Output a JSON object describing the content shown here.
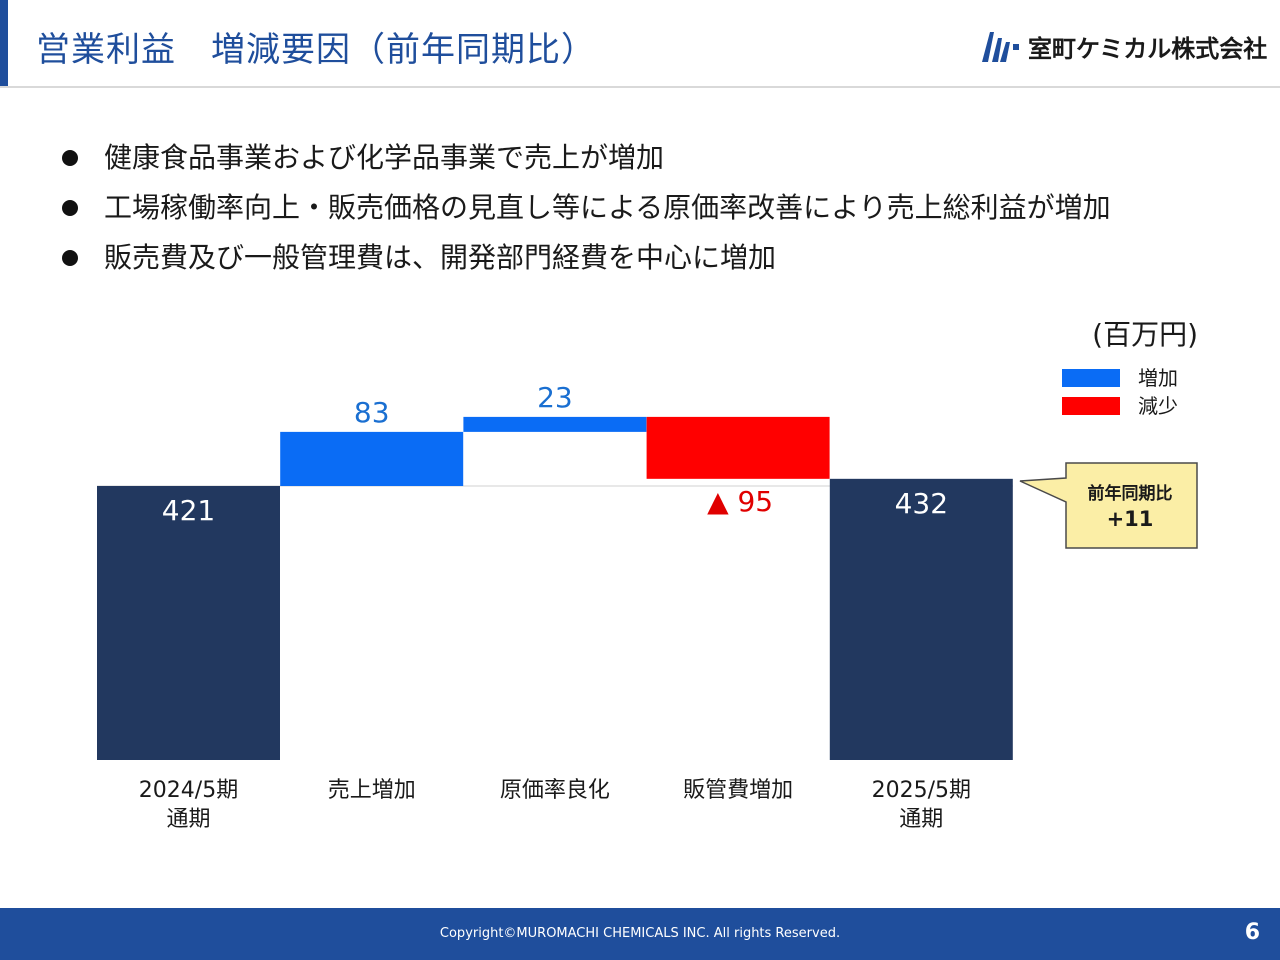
{
  "header": {
    "title": "営業利益　増減要因（前年同期比）",
    "company": "室町ケミカル株式会社",
    "accent_color": "#1f4e9c"
  },
  "bullets": [
    "健康食品事業および化学品事業で売上が増加",
    "工場稼働率向上・販売価格の見直し等による原価率改善により売上総利益が増加",
    "販売費及び一般管理費は、開発部門経費を中心に増加"
  ],
  "chart_data": {
    "type": "bar",
    "subtype": "waterfall",
    "unit": "(百万円)",
    "legend": [
      {
        "label": "増加",
        "color": "#0a6cf5"
      },
      {
        "label": "減少",
        "color": "#ff0000"
      }
    ],
    "legend_position": "top-right",
    "categories": [
      "2024/5期\n通期",
      "売上増加",
      "原価率良化",
      "販管費増加",
      "2025/5期\n通期"
    ],
    "steps": [
      {
        "kind": "total",
        "value": 421,
        "label": "421"
      },
      {
        "kind": "increase",
        "value": 83,
        "label": "83"
      },
      {
        "kind": "increase",
        "value": 23,
        "label": "23"
      },
      {
        "kind": "decrease",
        "value": -95,
        "label": "▲ 95"
      },
      {
        "kind": "total",
        "value": 432,
        "label": "432"
      }
    ],
    "colors": {
      "total": "#22385f",
      "increase": "#0a6cf5",
      "decrease": "#ff0000"
    },
    "callout": {
      "line1": "前年同期比",
      "line2": "+11",
      "fill": "#fbeea6"
    }
  },
  "footer": {
    "copyright": "Copyright©MUROMACHI CHEMICALS INC. All rights Reserved.",
    "page": "6"
  }
}
